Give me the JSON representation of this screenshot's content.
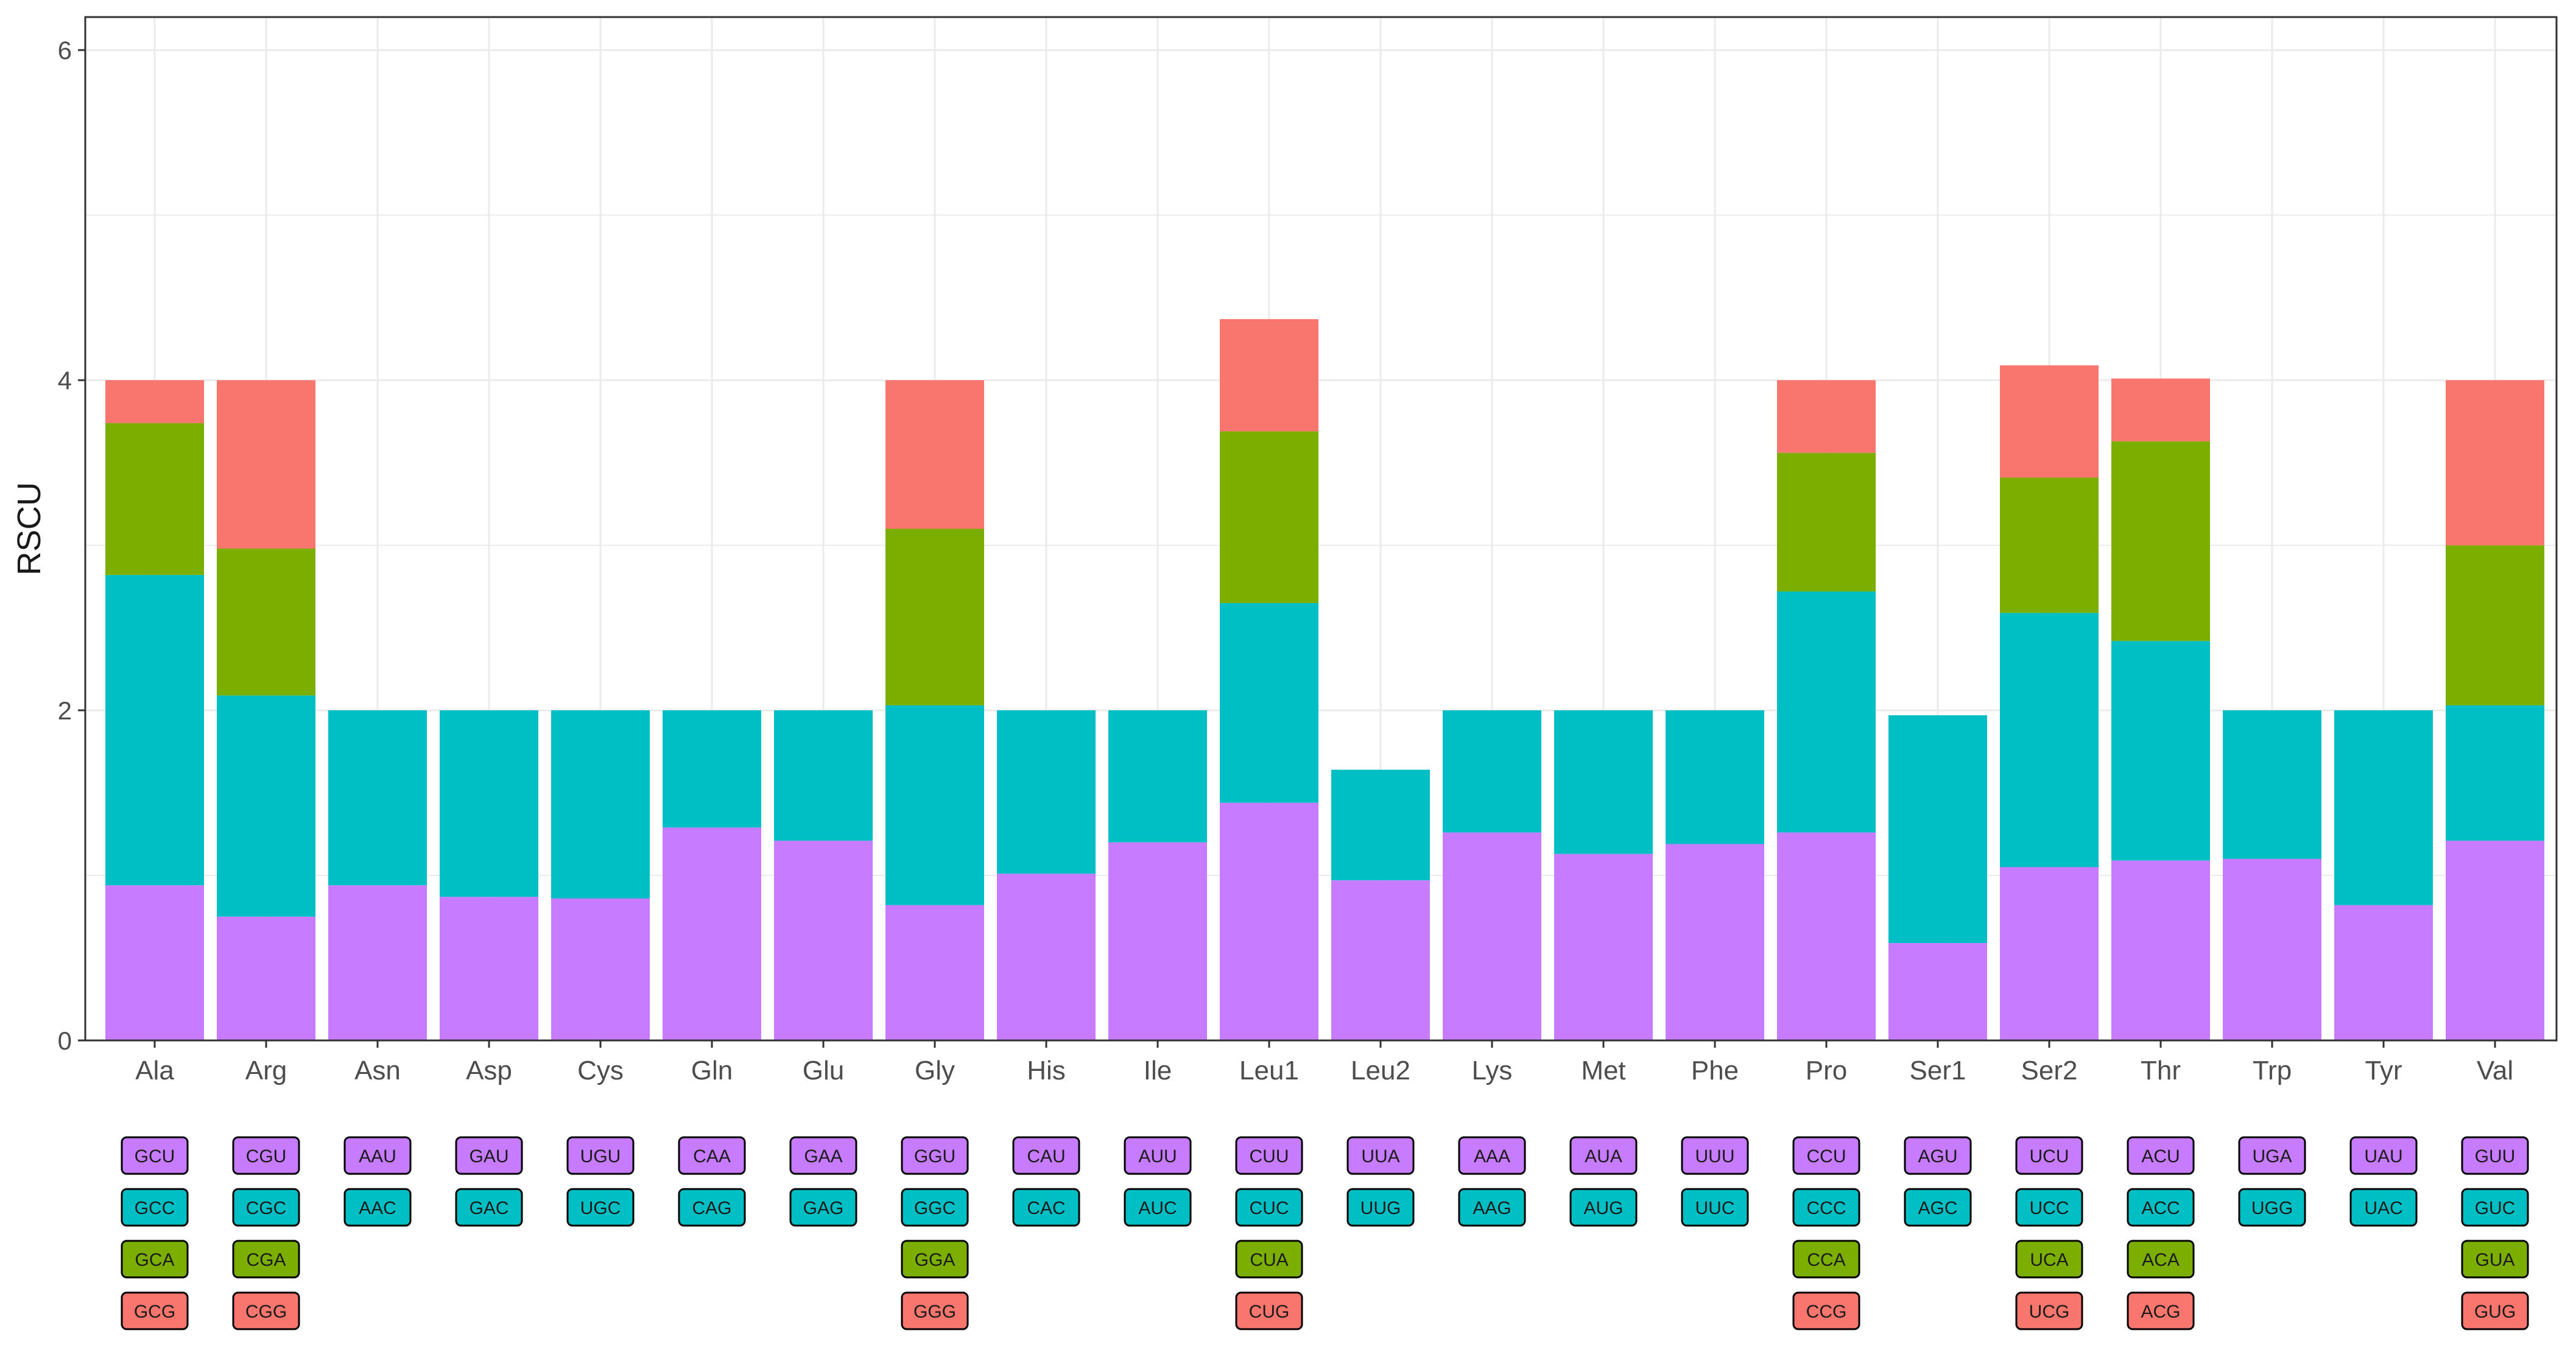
{
  "chart_data": {
    "type": "bar",
    "stacked": true,
    "title": "",
    "xlabel": "",
    "ylabel": "RSCU",
    "ylim": [
      0,
      6.2
    ],
    "yticks": [
      0,
      2,
      4,
      6
    ],
    "grid": true,
    "legend": "none",
    "colors": [
      "#C77CFF",
      "#00BFC4",
      "#7CAE00",
      "#F8766D"
    ],
    "categories": [
      "Ala",
      "Arg",
      "Asn",
      "Asp",
      "Cys",
      "Gln",
      "Glu",
      "Gly",
      "His",
      "Ile",
      "Leu1",
      "Leu2",
      "Lys",
      "Met",
      "Phe",
      "Pro",
      "Ser1",
      "Ser2",
      "Thr",
      "Trp",
      "Tyr",
      "Val"
    ],
    "stacks": [
      [
        0.94,
        1.88,
        0.92,
        0.26
      ],
      [
        0.75,
        1.34,
        0.89,
        1.02
      ],
      [
        0.94,
        1.06
      ],
      [
        0.87,
        1.13
      ],
      [
        0.86,
        1.14
      ],
      [
        1.29,
        0.71
      ],
      [
        1.21,
        0.79
      ],
      [
        0.82,
        1.21,
        1.07,
        0.9
      ],
      [
        1.01,
        0.99
      ],
      [
        1.2,
        0.8
      ],
      [
        1.44,
        1.21,
        1.04,
        0.68
      ],
      [
        0.97,
        0.67
      ],
      [
        1.26,
        0.74
      ],
      [
        1.13,
        0.87
      ],
      [
        1.19,
        0.81
      ],
      [
        1.26,
        1.46,
        0.84,
        0.44
      ],
      [
        0.59,
        1.38
      ],
      [
        1.05,
        1.54,
        0.82,
        0.68
      ],
      [
        1.09,
        1.33,
        1.21,
        0.38
      ],
      [
        1.1,
        0.9
      ],
      [
        0.82,
        1.18
      ],
      [
        1.21,
        0.82,
        0.97,
        1.0
      ]
    ],
    "codons": [
      [
        "GCU",
        "GCC",
        "GCA",
        "GCG"
      ],
      [
        "CGU",
        "CGC",
        "CGA",
        "CGG"
      ],
      [
        "AAU",
        "AAC"
      ],
      [
        "GAU",
        "GAC"
      ],
      [
        "UGU",
        "UGC"
      ],
      [
        "CAA",
        "CAG"
      ],
      [
        "GAA",
        "GAG"
      ],
      [
        "GGU",
        "GGC",
        "GGA",
        "GGG"
      ],
      [
        "CAU",
        "CAC"
      ],
      [
        "AUU",
        "AUC"
      ],
      [
        "CUU",
        "CUC",
        "CUA",
        "CUG"
      ],
      [
        "UUA",
        "UUG"
      ],
      [
        "AAA",
        "AAG"
      ],
      [
        "AUA",
        "AUG"
      ],
      [
        "UUU",
        "UUC"
      ],
      [
        "CCU",
        "CCC",
        "CCA",
        "CCG"
      ],
      [
        "AGU",
        "AGC"
      ],
      [
        "UCU",
        "UCC",
        "UCA",
        "UCG"
      ],
      [
        "ACU",
        "ACC",
        "ACA",
        "ACG"
      ],
      [
        "UGA",
        "UGG"
      ],
      [
        "UAU",
        "UAC"
      ],
      [
        "GUU",
        "GUC",
        "GUA",
        "GUG"
      ]
    ]
  }
}
